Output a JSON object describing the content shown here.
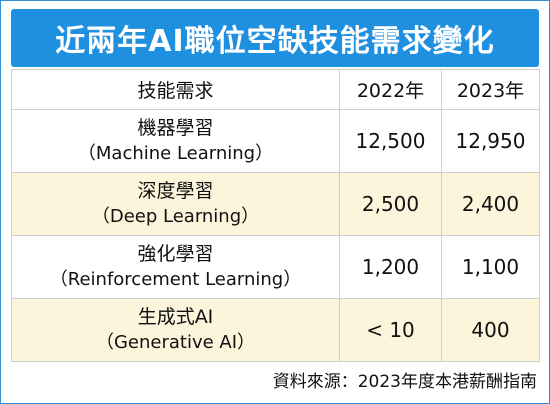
{
  "title": "近兩年AI職位空缺技能需求變化",
  "chart_data": {
    "type": "table",
    "columns": [
      "技能需求",
      "2022年",
      "2023年"
    ],
    "rows": [
      {
        "skill_zh": "機器學習",
        "skill_en": "（Machine Learning）",
        "y2022": "12,500",
        "y2023": "12,950"
      },
      {
        "skill_zh": "深度學習",
        "skill_en": "（Deep Learning）",
        "y2022": "2,500",
        "y2023": "2,400"
      },
      {
        "skill_zh": "強化學習",
        "skill_en": "（Reinforcement Learning）",
        "y2022": "1,200",
        "y2023": "1,100"
      },
      {
        "skill_zh": "生成式AI",
        "skill_en": "（Generative AI）",
        "y2022": "< 10",
        "y2023": "400"
      }
    ]
  },
  "source": "資料來源：2023年度本港薪酬指南",
  "colors": {
    "title_bg": "#1f8fe0",
    "title_text": "#ffffff",
    "row_alt_bg": "#fdf4dc",
    "border": "#2f8fd6"
  }
}
